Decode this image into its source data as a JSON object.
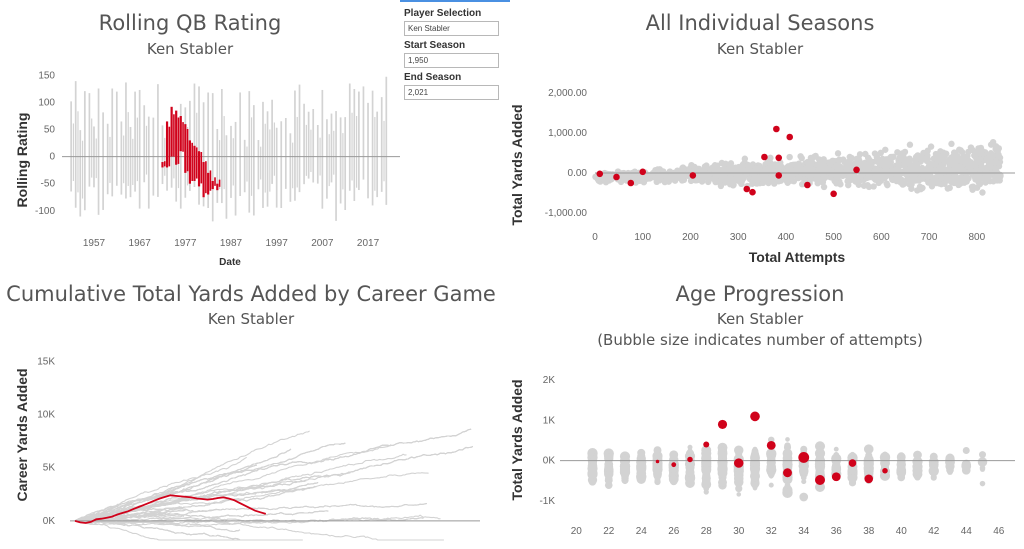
{
  "filters": {
    "player_label": "Player Selection",
    "player_value": "Ken Stabler",
    "start_label": "Start Season",
    "start_value": "1,950",
    "end_label": "End Season",
    "end_value": "2,021"
  },
  "colors": {
    "highlight": "#d0021b",
    "background_series": "#d3d3d3",
    "zero_line": "#999999"
  },
  "chart_data": [
    {
      "type": "bar",
      "title": "Rolling QB Rating",
      "subtitle": "Ken Stabler",
      "xlabel": "Date",
      "ylabel": "Rolling Rating",
      "ylim": [
        -130,
        160
      ],
      "xlim": [
        1950,
        2024
      ],
      "yticks": [
        150,
        100,
        50,
        0,
        -50,
        -100
      ],
      "xticks": [
        1957,
        1967,
        1977,
        1987,
        1997,
        2007,
        2017
      ],
      "highlight_series": {
        "name": "Ken Stabler",
        "seasons": [
          {
            "x": 1972,
            "low": -20,
            "high": -10
          },
          {
            "x": 1973,
            "low": -20,
            "high": 65
          },
          {
            "x": 1974,
            "low": 0,
            "high": 92
          },
          {
            "x": 1975,
            "low": -15,
            "high": 85
          },
          {
            "x": 1976,
            "low": 10,
            "high": 75
          },
          {
            "x": 1977,
            "low": -30,
            "high": 60
          },
          {
            "x": 1978,
            "low": -50,
            "high": 30
          },
          {
            "x": 1979,
            "low": -45,
            "high": 20
          },
          {
            "x": 1980,
            "low": -55,
            "high": 10
          },
          {
            "x": 1981,
            "low": -75,
            "high": -10
          },
          {
            "x": 1982,
            "low": -70,
            "high": -30
          },
          {
            "x": 1983,
            "low": -60,
            "high": -45
          },
          {
            "x": 1984,
            "low": -62,
            "high": -50
          }
        ]
      }
    },
    {
      "type": "scatter",
      "title": "All Individual Seasons",
      "subtitle": "Ken Stabler",
      "xlabel": "Total Attempts",
      "ylabel": "Total Yards Added",
      "xlim": [
        0,
        880
      ],
      "ylim": [
        -1300,
        2500
      ],
      "xticks": [
        0,
        100,
        200,
        300,
        400,
        500,
        600,
        700,
        800
      ],
      "yticks": [
        {
          "v": 2000,
          "label": "2,000.00"
        },
        {
          "v": 1000,
          "label": "1,000.00"
        },
        {
          "v": 0,
          "label": "0.00"
        },
        {
          "v": -1000,
          "label": "-1,000.00"
        }
      ],
      "highlight_points": [
        [
          10,
          -20
        ],
        [
          45,
          -100
        ],
        [
          75,
          -250
        ],
        [
          100,
          30
        ],
        [
          205,
          -60
        ],
        [
          318,
          -400
        ],
        [
          330,
          -480
        ],
        [
          355,
          400
        ],
        [
          380,
          1100
        ],
        [
          385,
          380
        ],
        [
          385,
          -60
        ],
        [
          408,
          900
        ],
        [
          445,
          -300
        ],
        [
          500,
          -520
        ],
        [
          548,
          80
        ]
      ]
    },
    {
      "type": "line",
      "title": "Cumulative Total Yards Added by Career Game",
      "subtitle": "Ken Stabler",
      "xlabel": "",
      "ylabel": "Career Yards Added",
      "ylim": [
        -1800,
        17000
      ],
      "yticks": [
        {
          "v": 15000,
          "label": "15K"
        },
        {
          "v": 10000,
          "label": "10K"
        },
        {
          "v": 5000,
          "label": "5K"
        },
        {
          "v": 0,
          "label": "0K"
        }
      ],
      "highlight_series": {
        "name": "Ken Stabler",
        "values": [
          0,
          -150,
          -200,
          -100,
          150,
          200,
          300,
          400,
          600,
          750,
          900,
          1100,
          1300,
          1500,
          1700,
          1900,
          2100,
          2250,
          2400,
          2350,
          2300,
          2250,
          2200,
          2100,
          2050,
          2000,
          2050,
          2150,
          2200,
          2100,
          1950,
          1700,
          1450,
          1200,
          950,
          800,
          650
        ]
      }
    },
    {
      "type": "scatter",
      "title": "Age Progression",
      "subtitle": "Ken Stabler",
      "note": "(Bubble size indicates number of attempts)",
      "xlabel": "",
      "ylabel": "Total Yards Added",
      "xlim": [
        19,
        47
      ],
      "ylim": [
        -1300,
        2500
      ],
      "xticks": [
        20,
        22,
        24,
        26,
        28,
        30,
        32,
        34,
        36,
        38,
        40,
        42,
        44,
        46
      ],
      "yticks": [
        {
          "v": 2000,
          "label": "2K"
        },
        {
          "v": 1000,
          "label": "1K"
        },
        {
          "v": 0,
          "label": "0K"
        },
        {
          "v": -1000,
          "label": "-1K"
        }
      ],
      "highlight_points": [
        {
          "age": 25,
          "yards": -20,
          "attempts": 10
        },
        {
          "age": 26,
          "yards": -100,
          "attempts": 45
        },
        {
          "age": 27,
          "yards": 30,
          "attempts": 75
        },
        {
          "age": 28,
          "yards": 400,
          "attempts": 100
        },
        {
          "age": 29,
          "yards": 900,
          "attempts": 355
        },
        {
          "age": 30,
          "yards": -60,
          "attempts": 385
        },
        {
          "age": 31,
          "yards": 1100,
          "attempts": 408
        },
        {
          "age": 32,
          "yards": 380,
          "attempts": 320
        },
        {
          "age": 33,
          "yards": -300,
          "attempts": 330
        },
        {
          "age": 34,
          "yards": 80,
          "attempts": 548
        },
        {
          "age": 35,
          "yards": -480,
          "attempts": 445
        },
        {
          "age": 36,
          "yards": -400,
          "attempts": 318
        },
        {
          "age": 37,
          "yards": -60,
          "attempts": 205
        },
        {
          "age": 38,
          "yards": -450,
          "attempts": 300
        },
        {
          "age": 39,
          "yards": -250,
          "attempts": 75
        }
      ]
    }
  ]
}
